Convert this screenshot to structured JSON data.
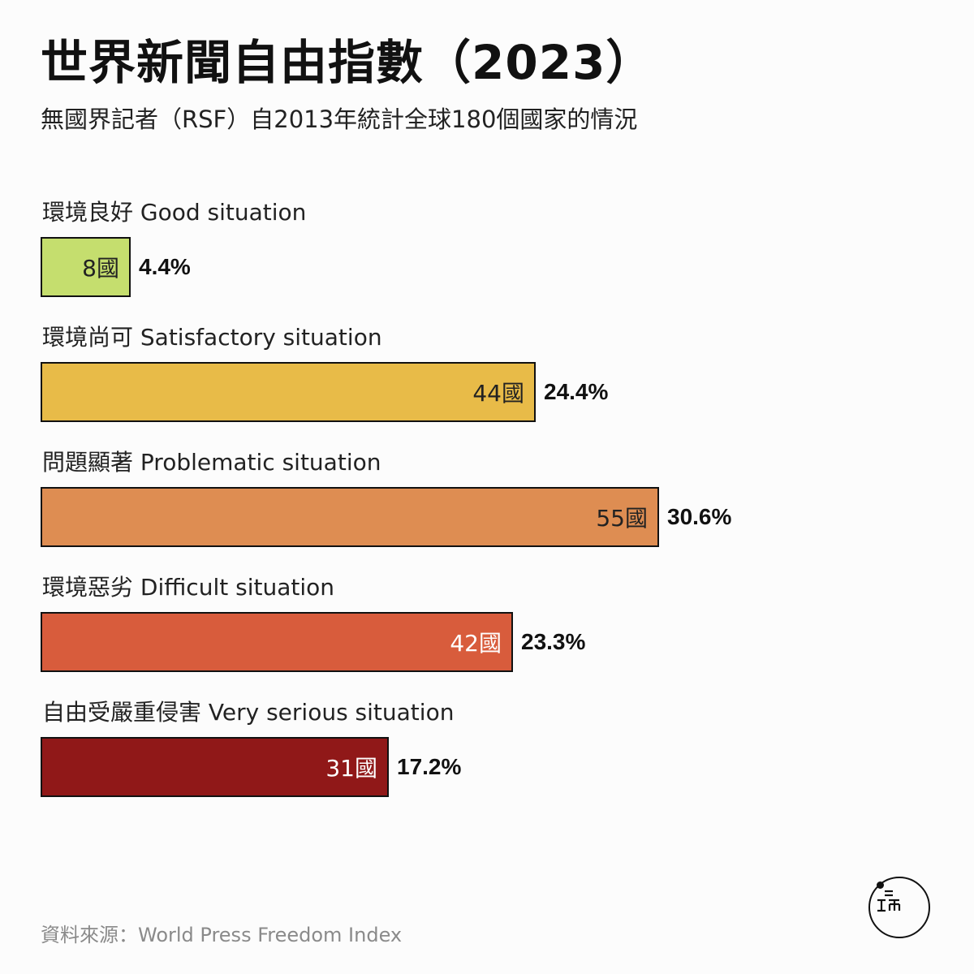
{
  "title": "世界新聞自由指數（2023）",
  "subtitle": "無國界記者（RSF）自2013年統計全球180個國家的情況",
  "source": "資料來源：World Press Freedom Index",
  "chart_data": {
    "type": "bar",
    "orientation": "horizontal",
    "title": "世界新聞自由指數（2023）",
    "subtitle": "無國界記者（RSF）自2013年統計全球180個國家的情況",
    "categories": [
      "環境良好 Good situation",
      "環境尚可 Satisfactory situation",
      "問題顯著 Problematic situation",
      "環境惡劣 Difficult situation",
      "自由受嚴重侵害 Very serious situation"
    ],
    "values": [
      8,
      44,
      55,
      42,
      31
    ],
    "count_labels": [
      "8國",
      "44國",
      "55國",
      "42國",
      "31國"
    ],
    "percent_labels": [
      "4.4%",
      "24.4%",
      "30.6%",
      "23.3%",
      "17.2%"
    ],
    "colors": [
      "#c5de6e",
      "#e8bb48",
      "#de8d52",
      "#d85c3c",
      "#901818"
    ],
    "count_text_colors": [
      "#222222",
      "#222222",
      "#222222",
      "#ffffff",
      "#ffffff"
    ],
    "xlim": [
      0,
      55
    ],
    "grid": false
  }
}
